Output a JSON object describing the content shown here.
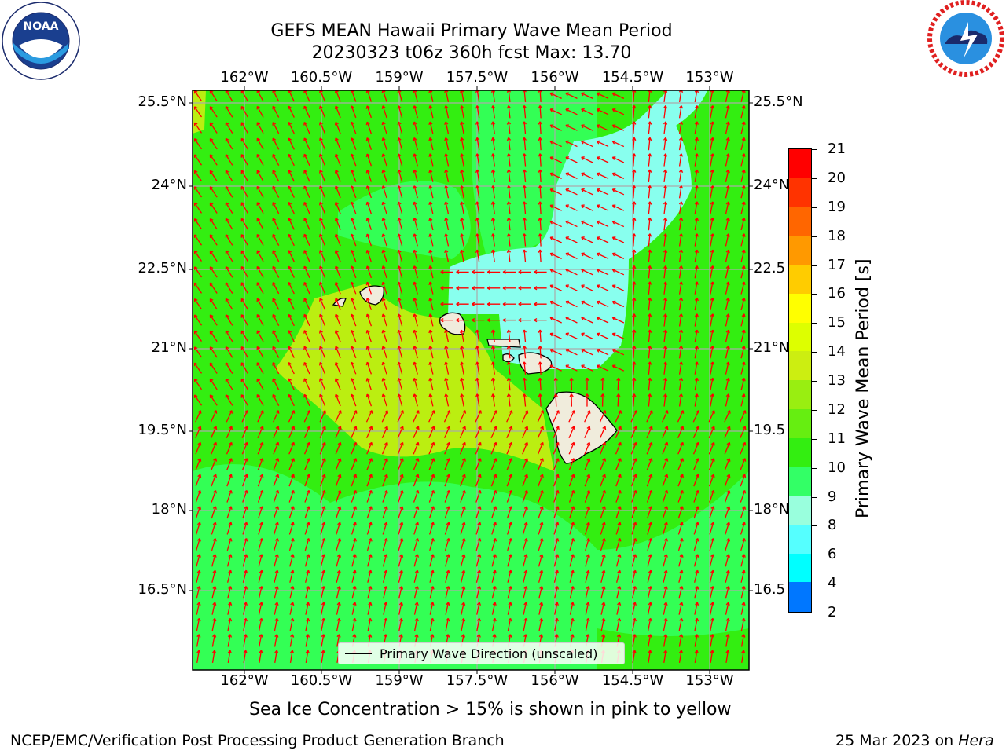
{
  "title": {
    "line1": "GEFS MEAN Hawaii Primary Wave Mean Period",
    "line2": "20230323 t06z 360h fcst   Max: 13.70"
  },
  "logos": {
    "noaa": {
      "text": "NOAA",
      "ring_text": "NATIONAL OCEANIC AND ATMOSPHERIC ADMINISTRATION · U.S. DEPARTMENT OF COMMERCE"
    },
    "nws": {
      "ring_text": "NATIONAL WEATHER SERVICE"
    }
  },
  "map": {
    "lon_labels": [
      "162°W",
      "160.5°W",
      "159°W",
      "157.5°W",
      "156°W",
      "154.5°W",
      "153°W"
    ],
    "lat_labels_left": [
      "25.5°N",
      "24°N",
      "22.5°N",
      "21°N",
      "19.5°N",
      "18°N",
      "16.5°N"
    ],
    "lat_labels_right": [
      "25.5°N",
      "24°N",
      "22.5",
      "21°N",
      "19.5",
      "18°N",
      "16.5"
    ],
    "legend": "Primary Wave Direction (unscaled)",
    "ocean_color": "#33ee11",
    "band_color": "#33ff55",
    "light_color": "#88ffee",
    "yellowgreen_color": "#bbee11",
    "land_color": "#f0ecdc",
    "arrow_color": "#ff0000",
    "grid_color": "#aaaaaa"
  },
  "colorbar": {
    "label": "Primary Wave Mean Period [s]",
    "ticks": [
      "21",
      "20",
      "19",
      "18",
      "17",
      "16",
      "15",
      "14",
      "13",
      "12",
      "11",
      "10",
      "9",
      "8",
      "6",
      "4",
      "2"
    ],
    "colors": [
      "#ff0000",
      "#ff3300",
      "#ff6600",
      "#ff9900",
      "#ffcc00",
      "#ffff00",
      "#ddff00",
      "#ccee11",
      "#99ee11",
      "#66ee11",
      "#33ee11",
      "#33ff66",
      "#99ffdd",
      "#55ffff",
      "#00ffff",
      "#0077ff",
      "#0000ff"
    ]
  },
  "caption": "Sea Ice Concentration > 15% is shown in pink to yellow",
  "footer": {
    "left": "NCEP/EMC/Verification Post Processing Product Generation Branch",
    "right_date": "25 Mar 2023 on ",
    "right_host": "Hera"
  }
}
